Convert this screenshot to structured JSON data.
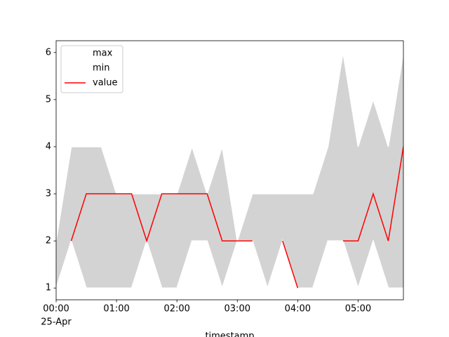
{
  "chart_data": {
    "type": "fill_between_line",
    "x": [
      "00:00",
      "00:15",
      "00:30",
      "00:45",
      "01:00",
      "01:15",
      "01:30",
      "01:45",
      "02:00",
      "02:15",
      "02:30",
      "02:45",
      "03:00",
      "03:15",
      "03:30",
      "03:45",
      "04:00",
      "04:15",
      "04:30",
      "04:45",
      "05:00",
      "05:15",
      "05:30",
      "05:45"
    ],
    "series": [
      {
        "name": "max",
        "color": "#ffffff",
        "values": [
          2,
          4,
          4,
          4,
          3,
          3,
          3,
          3,
          3,
          4,
          3,
          4,
          2,
          3,
          3,
          3,
          3,
          3,
          4,
          6,
          4,
          5,
          4,
          6
        ]
      },
      {
        "name": "min",
        "color": "#ffffff",
        "values": [
          1,
          2,
          1,
          1,
          1,
          1,
          2,
          1,
          1,
          2,
          2,
          1,
          2,
          2,
          1,
          2,
          1,
          1,
          2,
          2,
          1,
          2,
          1,
          1
        ]
      },
      {
        "name": "value",
        "color": "#ff0000",
        "values": [
          null,
          2,
          3,
          3,
          3,
          3,
          2,
          3,
          3,
          3,
          3,
          2,
          2,
          2,
          null,
          2,
          1,
          null,
          null,
          2,
          2,
          3,
          2,
          4
        ]
      }
    ],
    "fill_color": "#d3d3d3",
    "xlabel": "timestamp",
    "x_date_label": "25-Apr",
    "xlim": [
      "00:00",
      "05:45"
    ],
    "xticks": [
      "00:00",
      "01:00",
      "02:00",
      "03:00",
      "04:00",
      "05:00"
    ],
    "ylim": [
      0.75,
      6.25
    ],
    "yticks": [
      1,
      2,
      3,
      4,
      5,
      6
    ],
    "legend": "upper left"
  }
}
